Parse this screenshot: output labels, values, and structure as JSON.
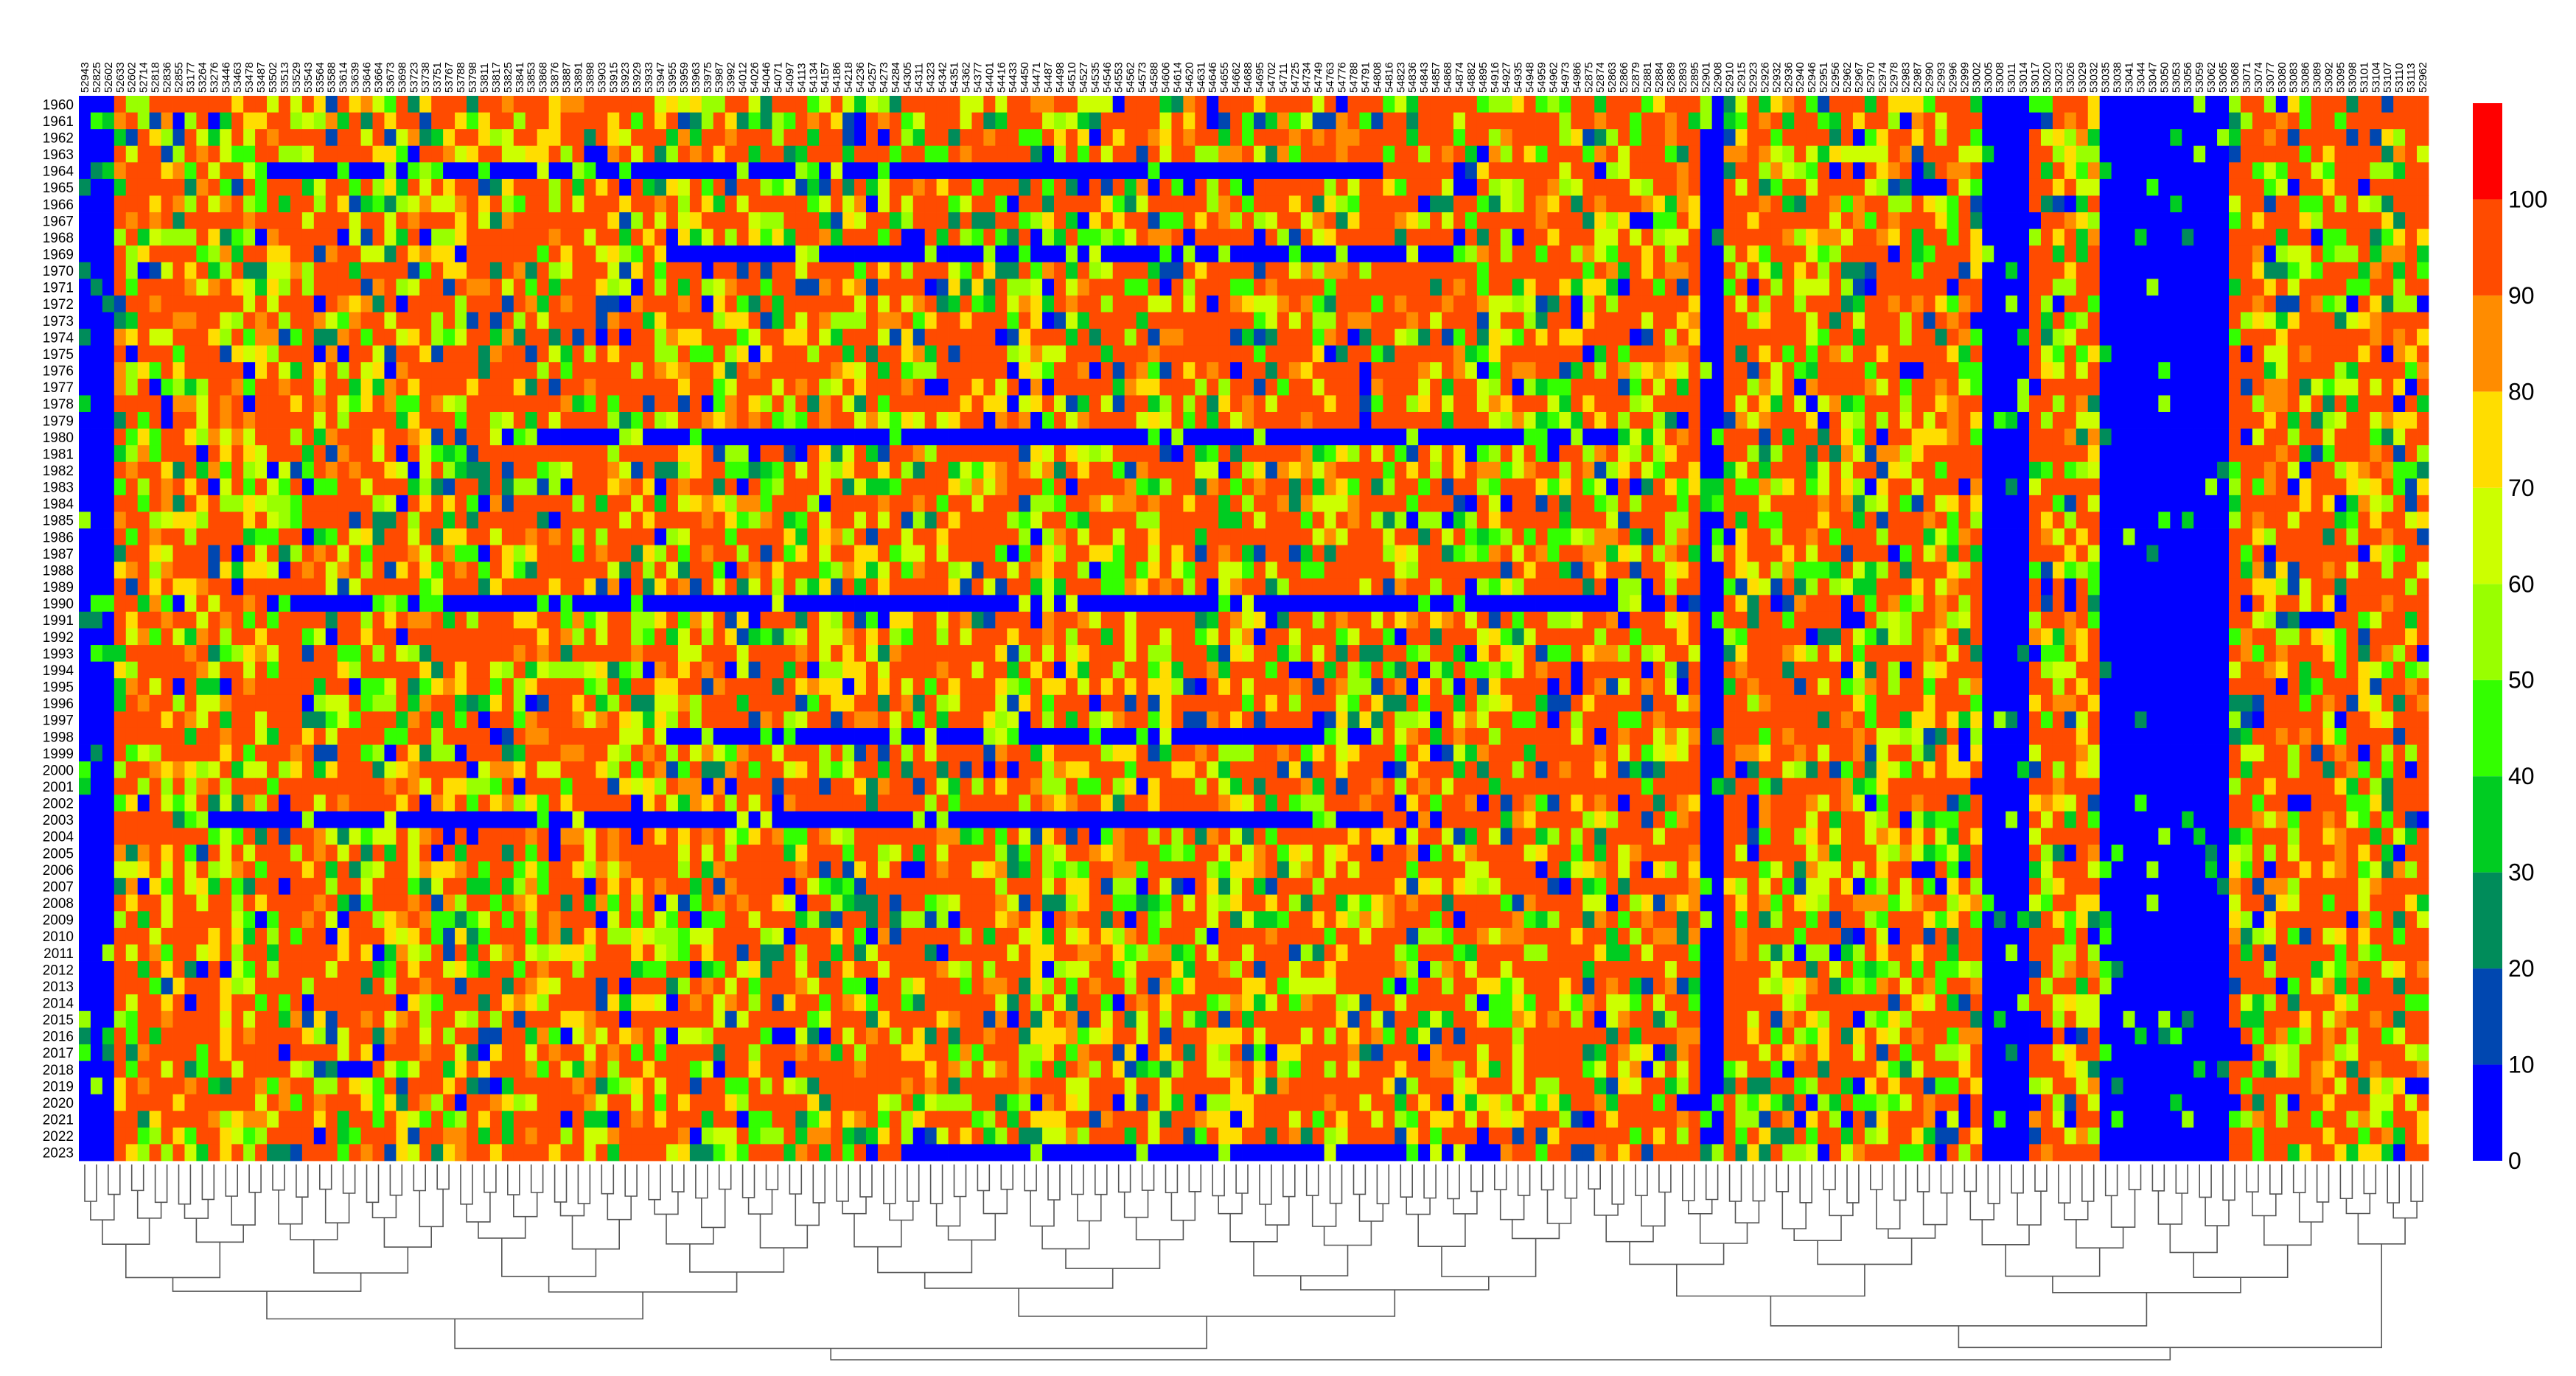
{
  "chart_data": {
    "type": "heatmap",
    "title": "",
    "xlabel": "",
    "ylabel": "",
    "rows": [
      "1960",
      "1961",
      "1962",
      "1963",
      "1964",
      "1965",
      "1966",
      "1967",
      "1968",
      "1969",
      "1970",
      "1971",
      "1972",
      "1973",
      "1974",
      "1975",
      "1976",
      "1977",
      "1978",
      "1979",
      "1980",
      "1981",
      "1982",
      "1983",
      "1984",
      "1985",
      "1986",
      "1987",
      "1988",
      "1989",
      "1990",
      "1991",
      "1992",
      "1993",
      "1994",
      "1995",
      "1996",
      "1997",
      "1998",
      "1999",
      "2000",
      "2001",
      "2002",
      "2003",
      "2004",
      "2005",
      "2006",
      "2007",
      "2008",
      "2009",
      "2010",
      "2011",
      "2012",
      "2013",
      "2014",
      "2015",
      "2016",
      "2017",
      "2018",
      "2019",
      "2020",
      "2021",
      "2022",
      "2023"
    ],
    "columns": [
      "52943",
      "52825",
      "52602",
      "52633",
      "52602",
      "52714",
      "52818",
      "52836",
      "52855",
      "53177",
      "53264",
      "53276",
      "53446",
      "53463",
      "53478",
      "53487",
      "53502",
      "53513",
      "53529",
      "53543",
      "53564",
      "53588",
      "53614",
      "53639",
      "53646",
      "53664",
      "53673",
      "53698",
      "53723",
      "53738",
      "53751",
      "53767",
      "53788",
      "53798",
      "53811",
      "53817",
      "53825",
      "53841",
      "53853",
      "53868",
      "53876",
      "53887",
      "53891",
      "53898",
      "53903",
      "53915",
      "53923",
      "53929",
      "53933",
      "53947",
      "53955",
      "53959",
      "53963",
      "53975",
      "53987",
      "53992",
      "54012",
      "54026",
      "54046",
      "54071",
      "54097",
      "54113",
      "54134",
      "54157",
      "54186",
      "54218",
      "54236",
      "54257",
      "54273",
      "54284",
      "54305",
      "54311",
      "54323",
      "54342",
      "54351",
      "54362",
      "54377",
      "54401",
      "54416",
      "54433",
      "54450",
      "54471",
      "54487",
      "54498",
      "54510",
      "54527",
      "54535",
      "54546",
      "54553",
      "54562",
      "54573",
      "54588",
      "54606",
      "54614",
      "54620",
      "54631",
      "54646",
      "54655",
      "54662",
      "54688",
      "54695",
      "54702",
      "54711",
      "54725",
      "54734",
      "54749",
      "54763",
      "54776",
      "54788",
      "54791",
      "54808",
      "54816",
      "54823",
      "54836",
      "54843",
      "54857",
      "54868",
      "54874",
      "54882",
      "54895",
      "54916",
      "54927",
      "54935",
      "54948",
      "54959",
      "54962",
      "54973",
      "54986",
      "52875",
      "52874",
      "52863",
      "52866",
      "52879",
      "52881",
      "52884",
      "52889",
      "52893",
      "52895",
      "52901",
      "52908",
      "52910",
      "52915",
      "52923",
      "52926",
      "52932",
      "52936",
      "52940",
      "52946",
      "52951",
      "52956",
      "52962",
      "52967",
      "52970",
      "52974",
      "52978",
      "52983",
      "52987",
      "52990",
      "52993",
      "52996",
      "52999",
      "53002",
      "53005",
      "53008",
      "53011",
      "53014",
      "53017",
      "53020",
      "53023",
      "53026",
      "53029",
      "53032",
      "53035",
      "53038",
      "53041",
      "53044",
      "53047",
      "53050",
      "53053",
      "53056",
      "53059",
      "53062",
      "53065",
      "53068",
      "53071",
      "53074",
      "53077",
      "53080",
      "53083",
      "53086",
      "53089",
      "53092",
      "53095",
      "53098",
      "53101",
      "53104",
      "53107",
      "53110",
      "53113",
      "52962"
    ],
    "color_scale": {
      "min": 0,
      "max": 110,
      "ticks": [
        0,
        10,
        20,
        30,
        40,
        50,
        60,
        70,
        80,
        90,
        100
      ],
      "bins": [
        {
          "from": 0,
          "to": 10,
          "color": "#0000ff"
        },
        {
          "from": 10,
          "to": 20,
          "color": "#0047b0"
        },
        {
          "from": 20,
          "to": 30,
          "color": "#008c5a"
        },
        {
          "from": 30,
          "to": 40,
          "color": "#00cc22"
        },
        {
          "from": 40,
          "to": 50,
          "color": "#33ff00"
        },
        {
          "from": 50,
          "to": 60,
          "color": "#99ff00"
        },
        {
          "from": 60,
          "to": 70,
          "color": "#ccff00"
        },
        {
          "from": 70,
          "to": 80,
          "color": "#ffdd00"
        },
        {
          "from": 80,
          "to": 90,
          "color": "#ff8c00"
        },
        {
          "from": 90,
          "to": 100,
          "color": "#ff4b00"
        },
        {
          "from": 100,
          "to": 110,
          "color": "#ff0000"
        }
      ]
    },
    "row_patterns": {
      "blue_band_rows": [
        "1964",
        "1969",
        "1980",
        "1990",
        "1998",
        "2003",
        "2023"
      ],
      "blue_band_ranges": [
        [
          0.08,
          0.55
        ],
        [
          0.25,
          0.58
        ],
        [
          0.18,
          0.65
        ],
        [
          0.08,
          0.65
        ],
        [
          0.25,
          0.55
        ],
        [
          0.05,
          0.55
        ],
        [
          0.35,
          0.6
        ]
      ],
      "blue_columns": [
        [
          0,
          2
        ],
        [
          138,
          139
        ],
        [
          162,
          165
        ],
        [
          172,
          182
        ]
      ]
    },
    "dendrogram": "hierarchical clustering of columns",
    "grid": false,
    "legend": "colorbar-right"
  }
}
